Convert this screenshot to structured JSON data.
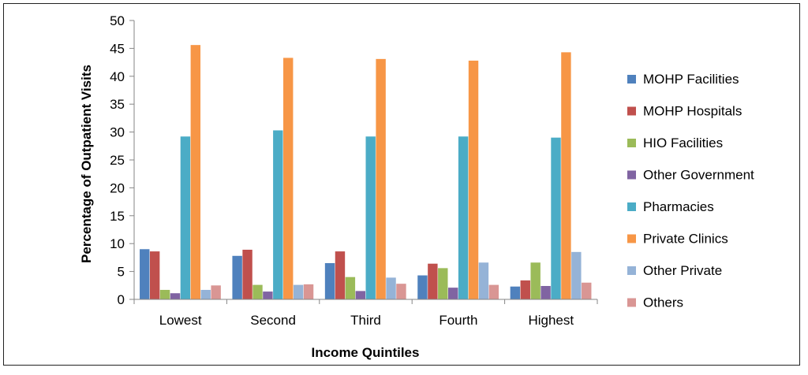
{
  "chart_data": {
    "type": "bar",
    "title": "",
    "xlabel": "Income Quintiles",
    "ylabel": "Percentage of Outpatient Visits",
    "ylim": [
      0,
      50
    ],
    "yticks": [
      0,
      5,
      10,
      15,
      20,
      25,
      30,
      35,
      40,
      45,
      50
    ],
    "grid": false,
    "legend_position": "right",
    "categories": [
      "Lowest",
      "Second",
      "Third",
      "Fourth",
      "Highest"
    ],
    "series": [
      {
        "name": "MOHP Facilities",
        "color": "#4f81bd",
        "values": [
          9.0,
          7.8,
          6.5,
          4.3,
          2.3
        ]
      },
      {
        "name": "MOHP Hospitals",
        "color": "#c0504d",
        "values": [
          8.6,
          8.9,
          8.6,
          6.4,
          3.4
        ]
      },
      {
        "name": "HIO Facilities",
        "color": "#9bbb59",
        "values": [
          1.7,
          2.6,
          4.0,
          5.6,
          6.6
        ]
      },
      {
        "name": "Other Government",
        "color": "#8064a2",
        "values": [
          1.1,
          1.4,
          1.5,
          2.1,
          2.4
        ]
      },
      {
        "name": "Pharmacies",
        "color": "#4bacc6",
        "values": [
          29.2,
          30.3,
          29.2,
          29.2,
          29.0
        ]
      },
      {
        "name": "Private Clinics",
        "color": "#f79646",
        "values": [
          45.6,
          43.3,
          43.1,
          42.8,
          44.3
        ]
      },
      {
        "name": "Other Private",
        "color": "#95b3d7",
        "values": [
          1.7,
          2.6,
          3.9,
          6.6,
          8.5
        ]
      },
      {
        "name": "Others",
        "color": "#d99694",
        "values": [
          2.5,
          2.7,
          2.8,
          2.6,
          3.0
        ]
      }
    ]
  }
}
